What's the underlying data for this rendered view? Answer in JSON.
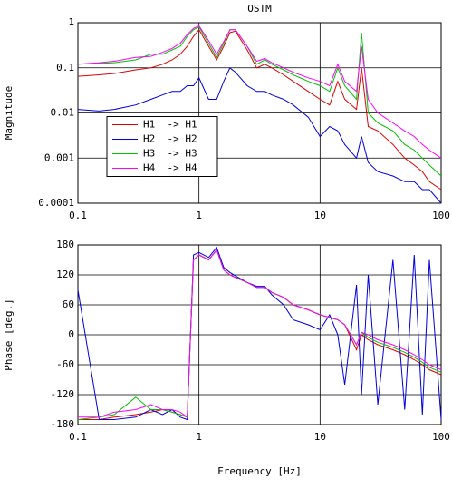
{
  "chart_data": [
    {
      "type": "line",
      "title": "OSTM",
      "ylabel": "Magnitude",
      "xscale": "log",
      "yscale": "log",
      "grid": true,
      "legend": "center left",
      "xlim": [
        0.1,
        100
      ],
      "xticks": [
        0.1,
        1,
        10,
        100
      ],
      "ylim": [
        0.0001,
        1
      ],
      "yticks": [
        1,
        0.1,
        0.01,
        0.001,
        0.0001
      ],
      "x": [
        0.1,
        0.15,
        0.2,
        0.3,
        0.4,
        0.5,
        0.6,
        0.7,
        0.8,
        0.9,
        1,
        1.2,
        1.4,
        1.6,
        1.8,
        2,
        2.5,
        3,
        3.5,
        4,
        5,
        6,
        8,
        10,
        12,
        14,
        16,
        20,
        22,
        25,
        30,
        40,
        50,
        60,
        70,
        80,
        100
      ],
      "series": [
        {
          "name": "H1  -> H1",
          "color": "#e00000",
          "values": [
            0.065,
            0.07,
            0.075,
            0.09,
            0.1,
            0.12,
            0.15,
            0.2,
            0.3,
            0.5,
            0.7,
            0.3,
            0.15,
            0.3,
            0.6,
            0.65,
            0.25,
            0.1,
            0.12,
            0.1,
            0.07,
            0.05,
            0.03,
            0.02,
            0.015,
            0.05,
            0.02,
            0.012,
            0.1,
            0.005,
            0.004,
            0.002,
            0.001,
            0.0007,
            0.0005,
            0.0003,
            0.0002
          ]
        },
        {
          "name": "H2  -> H2",
          "color": "#0000e0",
          "values": [
            0.012,
            0.011,
            0.012,
            0.015,
            0.02,
            0.025,
            0.03,
            0.03,
            0.04,
            0.04,
            0.06,
            0.02,
            0.02,
            0.05,
            0.1,
            0.08,
            0.04,
            0.03,
            0.03,
            0.025,
            0.02,
            0.015,
            0.008,
            0.003,
            0.005,
            0.004,
            0.002,
            0.001,
            0.003,
            0.0008,
            0.0005,
            0.0004,
            0.0003,
            0.0003,
            0.0002,
            0.0002,
            0.0001
          ]
        },
        {
          "name": "H3  -> H3",
          "color": "#00c000",
          "values": [
            0.12,
            0.125,
            0.13,
            0.15,
            0.2,
            0.2,
            0.25,
            0.3,
            0.5,
            0.7,
            0.8,
            0.35,
            0.17,
            0.35,
            0.7,
            0.7,
            0.3,
            0.12,
            0.15,
            0.12,
            0.09,
            0.07,
            0.05,
            0.04,
            0.03,
            0.1,
            0.04,
            0.02,
            0.6,
            0.01,
            0.006,
            0.004,
            0.002,
            0.0015,
            0.001,
            0.0007,
            0.0004
          ]
        },
        {
          "name": "H4  -> H4",
          "color": "#ff00ff",
          "values": [
            0.12,
            0.13,
            0.14,
            0.17,
            0.18,
            0.22,
            0.27,
            0.35,
            0.55,
            0.75,
            0.85,
            0.4,
            0.2,
            0.38,
            0.7,
            0.7,
            0.3,
            0.14,
            0.16,
            0.13,
            0.1,
            0.08,
            0.06,
            0.05,
            0.04,
            0.12,
            0.05,
            0.03,
            0.3,
            0.02,
            0.01,
            0.006,
            0.004,
            0.003,
            0.002,
            0.0015,
            0.001
          ]
        }
      ]
    },
    {
      "type": "line",
      "ylabel": "Phase [deg.]",
      "xlabel": "Frequency [Hz]",
      "xscale": "log",
      "grid": true,
      "xlim": [
        0.1,
        100
      ],
      "xticks": [
        0.1,
        1,
        10,
        100
      ],
      "ylim": [
        -180,
        180
      ],
      "yticks": [
        180,
        120,
        60,
        0,
        -60,
        -120,
        -180
      ],
      "x": [
        0.1,
        0.15,
        0.2,
        0.3,
        0.4,
        0.5,
        0.6,
        0.7,
        0.8,
        0.9,
        1,
        1.2,
        1.4,
        1.6,
        1.8,
        2,
        2.5,
        3,
        3.5,
        4,
        5,
        6,
        8,
        10,
        12,
        14,
        16,
        20,
        22,
        25,
        30,
        40,
        50,
        60,
        70,
        80,
        100
      ],
      "series": [
        {
          "color": "#e00000",
          "values": [
            -170,
            -170,
            -165,
            -160,
            -155,
            -150,
            -155,
            -160,
            -165,
            150,
            160,
            150,
            170,
            130,
            120,
            115,
            105,
            95,
            95,
            85,
            75,
            60,
            50,
            40,
            35,
            30,
            20,
            -30,
            0,
            -10,
            -20,
            -30,
            -40,
            -50,
            -60,
            -70,
            -80
          ]
        },
        {
          "color": "#0000e0",
          "values": [
            90,
            -170,
            -170,
            -165,
            -150,
            -160,
            -150,
            -165,
            -170,
            160,
            165,
            155,
            175,
            135,
            125,
            118,
            105,
            97,
            97,
            80,
            60,
            30,
            20,
            10,
            40,
            0,
            -100,
            100,
            -120,
            120,
            -140,
            150,
            -150,
            160,
            -160,
            150,
            -170
          ]
        },
        {
          "color": "#00c000",
          "values": [
            -170,
            -165,
            -160,
            -125,
            -150,
            -150,
            -155,
            -160,
            -165,
            150,
            160,
            150,
            170,
            130,
            120,
            115,
            105,
            95,
            95,
            85,
            75,
            60,
            50,
            40,
            35,
            30,
            20,
            -20,
            5,
            -5,
            -15,
            -25,
            -35,
            -45,
            -55,
            -65,
            -75
          ]
        },
        {
          "color": "#ff00ff",
          "values": [
            -165,
            -165,
            -155,
            -150,
            -140,
            -150,
            -150,
            -155,
            -165,
            150,
            160,
            150,
            170,
            130,
            120,
            115,
            105,
            95,
            95,
            85,
            75,
            60,
            50,
            40,
            35,
            30,
            20,
            -20,
            5,
            0,
            -10,
            -20,
            -30,
            -40,
            -50,
            -60,
            -70
          ]
        }
      ]
    }
  ]
}
